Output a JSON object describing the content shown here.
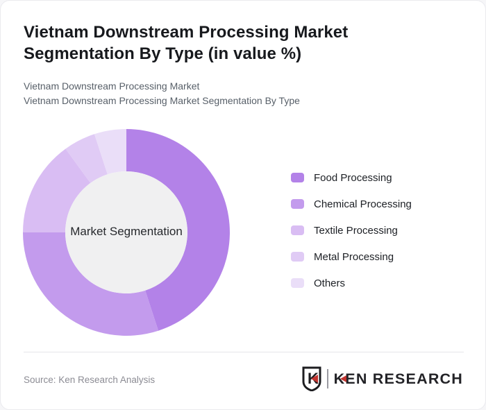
{
  "header": {
    "title": "Vietnam Downstream Processing Market Segmentation By Type (in value %)",
    "subtitle_line1": "Vietnam Downstream Processing Market",
    "subtitle_line2": "Vietnam Downstream Processing Market Segmentation By Type"
  },
  "chart_data": {
    "type": "pie",
    "subtype": "donut",
    "title": "Vietnam Downstream Processing Market Segmentation By Type (in value %)",
    "center_label": "Market Segmentation",
    "labels": [
      "Food Processing",
      "Chemical Processing",
      "Textile Processing",
      "Metal Processing",
      "Others"
    ],
    "values": [
      45,
      30,
      15,
      5,
      5
    ],
    "value_unit": "value %",
    "colors": [
      "#b382e8",
      "#c39bed",
      "#d9bdf3",
      "#e0cbf5",
      "#eadef8"
    ],
    "hole_color": "#f0f0f1",
    "start_angle_deg": 0,
    "direction": "clockwise",
    "legend_position": "right",
    "data_labels_shown": false
  },
  "footer": {
    "source": "Source: Ken Research Analysis",
    "logo_monogram": "K",
    "logo_text": "KEN RESEARCH",
    "logo_red": "#c23430"
  }
}
